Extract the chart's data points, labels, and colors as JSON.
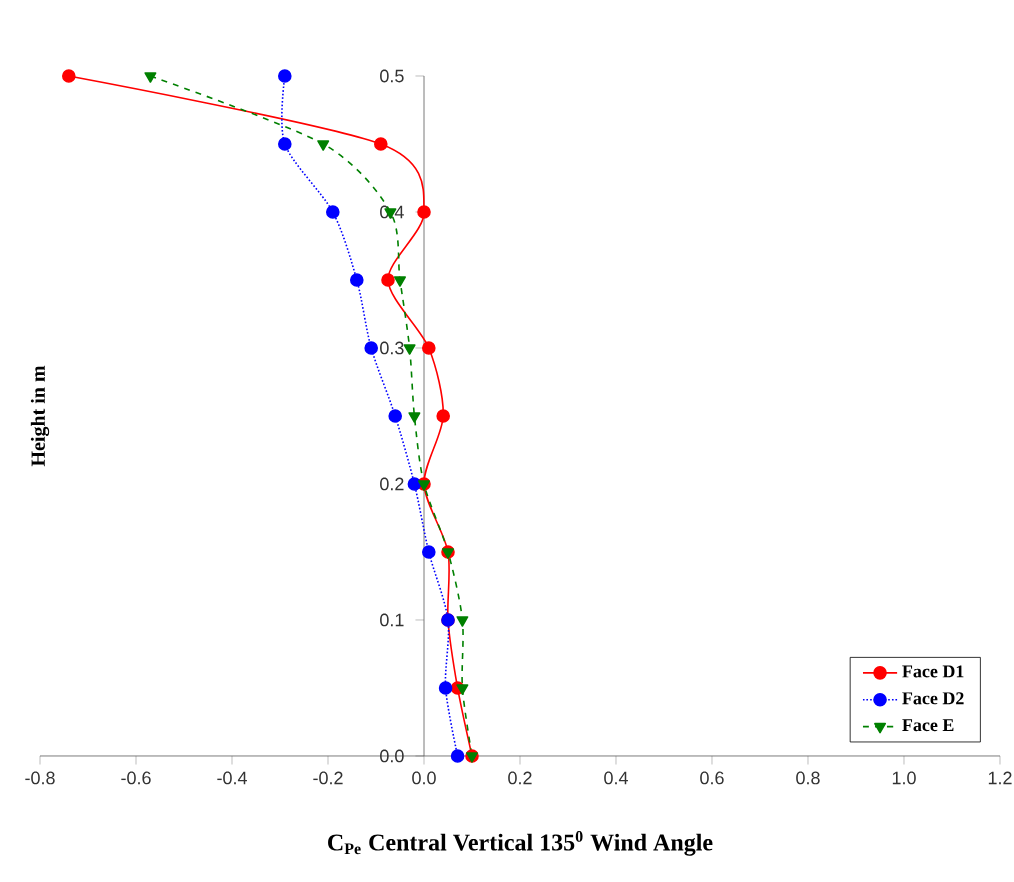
{
  "chart_data": {
    "type": "line",
    "xlabel": "C$_{Pe}$ Central Vertical 135$^{0}$ Wind Angle",
    "ylabel": "Height in m",
    "xlim": [
      -0.8,
      1.2
    ],
    "ylim": [
      0,
      0.5
    ],
    "xticks": [
      -0.8,
      -0.6,
      -0.4,
      -0.2,
      {
        "value": 0,
        "label": "0.0"
      },
      0.2,
      0.4,
      0.6,
      0.8,
      {
        "value": 1,
        "label": "1.0"
      },
      1.2
    ],
    "yticks": [
      {
        "value": 0,
        "label": "0.0"
      },
      0.1,
      0.2,
      0.3,
      0.4,
      0.5
    ],
    "legend": "bottom right",
    "series": [
      {
        "name": "Face D1",
        "color": "#ff0000",
        "marker": "circle",
        "line_style": "solid",
        "x": [
          -0.74,
          -0.09,
          0.0,
          -0.075,
          0.01,
          0.04,
          0.0,
          0.05,
          0.05,
          0.07,
          0.1
        ],
        "values": [
          0.5,
          0.45,
          0.4,
          0.35,
          0.3,
          0.25,
          0.2,
          0.15,
          0.1,
          0.05,
          0.0
        ]
      },
      {
        "name": "Face D2",
        "color": "#0000ff",
        "marker": "circle",
        "line_style": "dotted",
        "x": [
          -0.29,
          -0.29,
          -0.19,
          -0.14,
          -0.11,
          -0.06,
          -0.02,
          0.01,
          0.05,
          0.045,
          0.07
        ],
        "values": [
          0.5,
          0.45,
          0.4,
          0.35,
          0.3,
          0.25,
          0.2,
          0.15,
          0.1,
          0.05,
          0.0
        ]
      },
      {
        "name": "Face E",
        "color": "#008000",
        "marker": "triangle",
        "line_style": "dashed",
        "x": [
          -0.57,
          -0.21,
          -0.07,
          -0.05,
          -0.03,
          -0.02,
          0.0,
          0.05,
          0.08,
          0.08,
          0.1
        ],
        "values": [
          0.5,
          0.45,
          0.4,
          0.35,
          0.3,
          0.25,
          0.2,
          0.15,
          0.1,
          0.05,
          0.0
        ]
      }
    ]
  }
}
